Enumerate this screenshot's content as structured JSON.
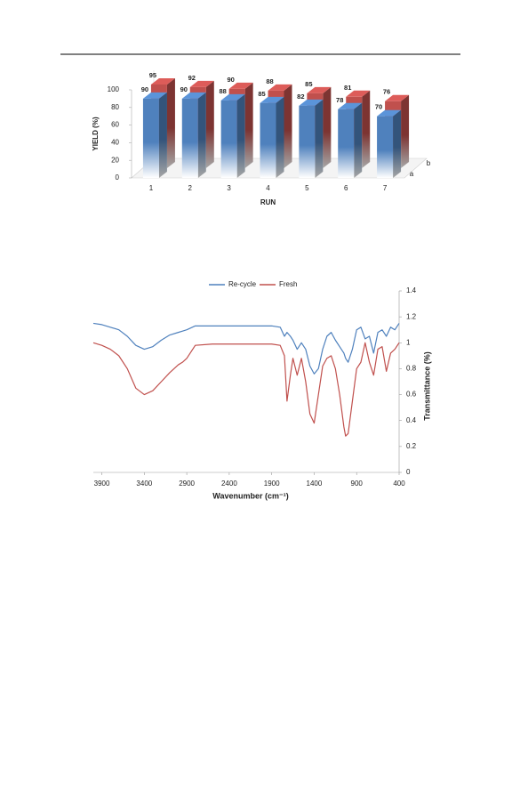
{
  "chart_data": [
    {
      "type": "bar3d",
      "categories": [
        "1",
        "2",
        "3",
        "4",
        "5",
        "6",
        "7"
      ],
      "series": [
        {
          "name": "a",
          "color": "#4f81bd",
          "values": [
            90,
            90,
            88,
            85,
            82,
            78,
            70
          ]
        },
        {
          "name": "b",
          "color": "#c0504d",
          "values": [
            95,
            92,
            90,
            88,
            85,
            81,
            76
          ]
        }
      ],
      "ylim": [
        0,
        100
      ],
      "yticks": [
        0,
        20,
        40,
        60,
        80,
        100
      ],
      "xlabel": "RUN",
      "ylabel": "YIELD (%)",
      "data_labels": true
    },
    {
      "type": "line",
      "x": [
        4000,
        3900,
        3800,
        3700,
        3600,
        3500,
        3400,
        3300,
        3200,
        3100,
        3000,
        2950,
        2900,
        2800,
        2600,
        2400,
        2200,
        2000,
        1900,
        1800,
        1750,
        1720,
        1680,
        1650,
        1600,
        1550,
        1500,
        1450,
        1400,
        1350,
        1300,
        1250,
        1200,
        1150,
        1100,
        1050,
        1030,
        1000,
        950,
        900,
        850,
        800,
        750,
        700,
        650,
        600,
        550,
        500,
        450,
        400
      ],
      "series": [
        {
          "name": "Re-cycle",
          "color": "#4f81bd",
          "values": [
            1.15,
            1.14,
            1.12,
            1.1,
            1.05,
            0.98,
            0.95,
            0.97,
            1.02,
            1.06,
            1.08,
            1.09,
            1.1,
            1.13,
            1.13,
            1.13,
            1.13,
            1.13,
            1.13,
            1.12,
            1.05,
            1.08,
            1.05,
            1.02,
            0.95,
            1.0,
            0.95,
            0.82,
            0.76,
            0.8,
            0.95,
            1.05,
            1.08,
            1.02,
            0.97,
            0.92,
            0.88,
            0.85,
            0.95,
            1.1,
            1.12,
            1.03,
            1.05,
            0.92,
            1.08,
            1.1,
            1.05,
            1.12,
            1.1,
            1.15
          ]
        },
        {
          "name": "Fresh",
          "color": "#c0504d",
          "values": [
            1.0,
            0.98,
            0.95,
            0.9,
            0.8,
            0.65,
            0.6,
            0.63,
            0.7,
            0.77,
            0.83,
            0.85,
            0.88,
            0.98,
            0.99,
            0.99,
            0.99,
            0.99,
            0.99,
            0.98,
            0.9,
            0.55,
            0.75,
            0.88,
            0.75,
            0.88,
            0.7,
            0.45,
            0.38,
            0.6,
            0.82,
            0.88,
            0.9,
            0.8,
            0.6,
            0.35,
            0.28,
            0.3,
            0.55,
            0.8,
            0.85,
            1.0,
            0.85,
            0.75,
            0.95,
            0.97,
            0.78,
            0.92,
            0.95,
            1.0
          ]
        }
      ],
      "xlim": [
        4000,
        400
      ],
      "xticks": [
        3900,
        3400,
        2900,
        2400,
        1900,
        1400,
        900,
        400
      ],
      "ylim": [
        0,
        1.4
      ],
      "yticks": [
        0,
        0.2,
        0.4,
        0.6,
        0.8,
        1,
        1.2,
        1.4
      ],
      "xlabel": "Wavenumber (cm⁻¹)",
      "ylabel": "Transmittance (%)",
      "y_axis_side": "right",
      "legend": "top"
    }
  ]
}
